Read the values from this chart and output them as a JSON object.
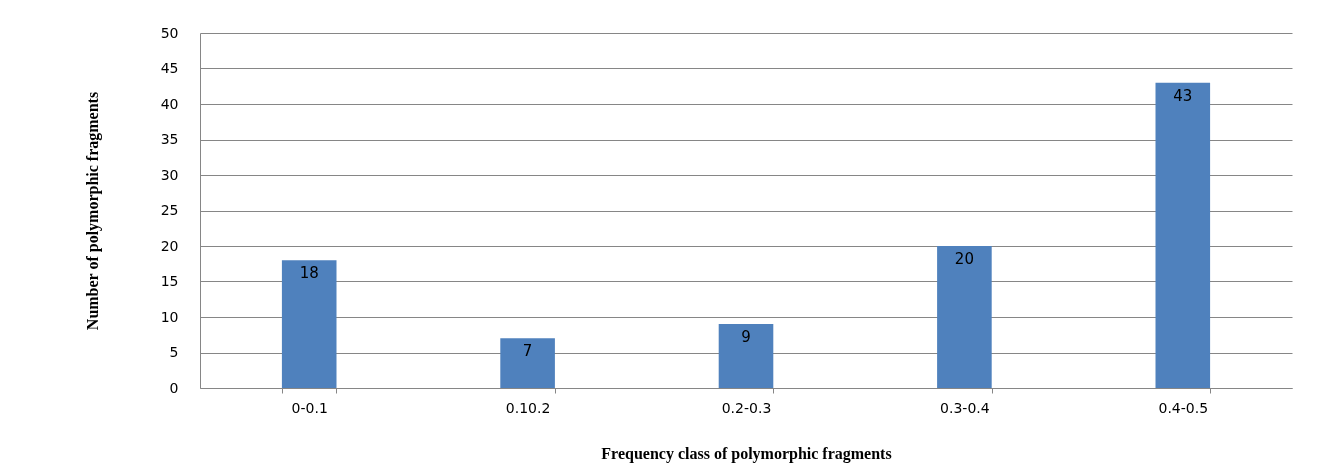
{
  "chart_data": {
    "type": "bar",
    "xlabel": "Frequency class of polymorphic fragments",
    "ylabel": "Number of polymorphic fragments",
    "categories": [
      "0-0.1",
      "0.10.2",
      "0.2-0.3",
      "0.3-0.4",
      "0.4-0.5"
    ],
    "values": [
      18,
      7,
      9,
      20,
      43
    ],
    "color": "#4f81bd",
    "ylim": [
      0,
      50
    ],
    "yticks": [
      0,
      5,
      10,
      15,
      20,
      25,
      30,
      35,
      40,
      45,
      50
    ],
    "grid": "y",
    "data_labels": true
  }
}
